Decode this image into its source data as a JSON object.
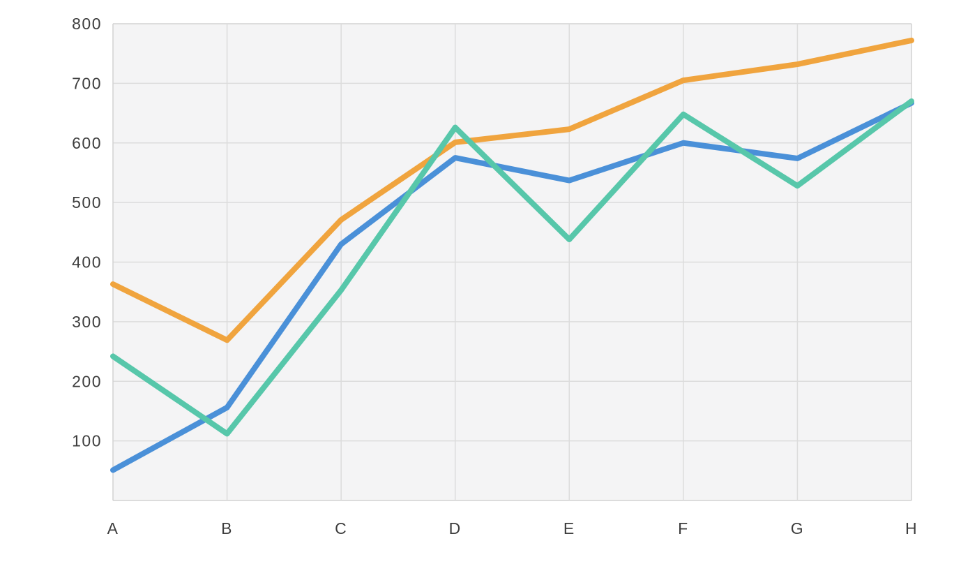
{
  "chart_data": {
    "type": "line",
    "title": "",
    "xlabel": "",
    "ylabel": "",
    "categories": [
      "A",
      "B",
      "C",
      "D",
      "E",
      "F",
      "G",
      "H"
    ],
    "series": [
      {
        "name": "orange",
        "color": "#F0A43E",
        "values": [
          363,
          269,
          471,
          601,
          623,
          705,
          732,
          772
        ]
      },
      {
        "name": "blue",
        "color": "#4A90D8",
        "values": [
          51,
          156,
          430,
          575,
          537,
          600,
          574,
          667
        ]
      },
      {
        "name": "teal",
        "color": "#57C7AA",
        "values": [
          242,
          112,
          353,
          626,
          438,
          648,
          528,
          670
        ]
      }
    ],
    "ylim": [
      0,
      800
    ],
    "y_tick_step": 100,
    "y_tick_labels": [
      "100",
      "200",
      "300",
      "400",
      "500",
      "600",
      "700",
      "800"
    ],
    "grid": true,
    "legend": false,
    "markers": false
  },
  "style": {
    "page_background": "#ffffff",
    "plot_background": "#f4f4f5",
    "grid_color": "#dcdcdc",
    "border_color": "#d2d2d2",
    "tick_label_color": "#3d3d3d",
    "line_width": 8
  }
}
